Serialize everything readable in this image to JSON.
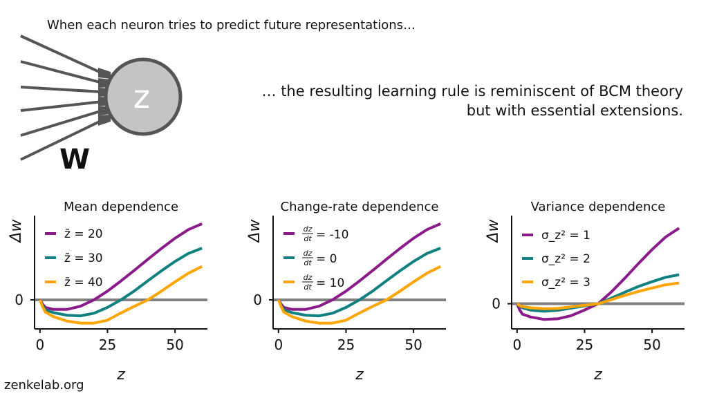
{
  "header": {
    "top_caption": "When each neuron tries to predict future representations…",
    "right_caption_line1": "… the resulting learning rule is reminiscent of BCM theory",
    "right_caption_line2": "but with essential extensions."
  },
  "neuron": {
    "label": "z",
    "weight_label": "W"
  },
  "footer": {
    "text": "zenkelab.org"
  },
  "colors": {
    "purple": "#8B1A8B",
    "teal": "#118080",
    "orange": "#FFA500",
    "zero_line": "#808080"
  },
  "chart_data": [
    {
      "type": "line",
      "title": "Mean dependence",
      "xlabel": "z",
      "ylabel": "Δw",
      "xlim": [
        -2,
        62
      ],
      "xticks": [
        0,
        25,
        50
      ],
      "yticks": [
        0
      ],
      "ylim": [
        -1.0,
        2.9
      ],
      "series": [
        {
          "name": "z̄ = 20",
          "color": "#8B1A8B",
          "x": [
            0,
            1,
            2,
            5,
            10,
            15,
            20,
            25,
            30,
            35,
            40,
            45,
            50,
            55,
            60
          ],
          "y": [
            0,
            -0.15,
            -0.26,
            -0.33,
            -0.33,
            -0.22,
            0.0,
            0.3,
            0.65,
            1.02,
            1.4,
            1.77,
            2.12,
            2.42,
            2.62
          ]
        },
        {
          "name": "z̄ = 30",
          "color": "#118080",
          "x": [
            0,
            1,
            2,
            5,
            10,
            15,
            20,
            25,
            30,
            35,
            40,
            45,
            50,
            55,
            60
          ],
          "y": [
            0,
            -0.2,
            -0.34,
            -0.44,
            -0.53,
            -0.55,
            -0.46,
            -0.26,
            0.0,
            0.31,
            0.66,
            1.0,
            1.32,
            1.6,
            1.78
          ]
        },
        {
          "name": "z̄ = 40",
          "color": "#FFA500",
          "x": [
            0,
            1,
            2,
            5,
            10,
            15,
            20,
            25,
            30,
            35,
            40,
            45,
            50,
            55,
            60
          ],
          "y": [
            0,
            -0.24,
            -0.42,
            -0.58,
            -0.73,
            -0.8,
            -0.8,
            -0.7,
            -0.45,
            -0.22,
            0.0,
            0.3,
            0.62,
            0.92,
            1.15
          ]
        }
      ]
    },
    {
      "type": "line",
      "title": "Change-rate dependence",
      "xlabel": "z",
      "ylabel": "Δw",
      "xlim": [
        -2,
        62
      ],
      "xticks": [
        0,
        25,
        50
      ],
      "yticks": [
        0
      ],
      "ylim": [
        -1.0,
        2.9
      ],
      "series": [
        {
          "name_frac": "dz/dt",
          "name_value": "= -10",
          "color": "#8B1A8B",
          "x": [
            0,
            1,
            2,
            5,
            10,
            15,
            20,
            25,
            30,
            35,
            40,
            45,
            50,
            55,
            60
          ],
          "y": [
            0,
            -0.15,
            -0.26,
            -0.33,
            -0.33,
            -0.22,
            0.0,
            0.3,
            0.65,
            1.02,
            1.4,
            1.77,
            2.12,
            2.42,
            2.62
          ]
        },
        {
          "name_frac": "dz/dt",
          "name_value": "= 0",
          "color": "#118080",
          "x": [
            0,
            1,
            2,
            5,
            10,
            15,
            20,
            25,
            30,
            35,
            40,
            45,
            50,
            55,
            60
          ],
          "y": [
            0,
            -0.2,
            -0.34,
            -0.44,
            -0.53,
            -0.55,
            -0.46,
            -0.26,
            0.0,
            0.31,
            0.66,
            1.0,
            1.32,
            1.6,
            1.78
          ]
        },
        {
          "name_frac": "dz/dt",
          "name_value": "= 10",
          "color": "#FFA500",
          "x": [
            0,
            1,
            2,
            5,
            10,
            15,
            20,
            25,
            30,
            35,
            40,
            45,
            50,
            55,
            60
          ],
          "y": [
            0,
            -0.24,
            -0.42,
            -0.58,
            -0.73,
            -0.8,
            -0.8,
            -0.7,
            -0.45,
            -0.22,
            0.0,
            0.3,
            0.62,
            0.92,
            1.15
          ]
        }
      ]
    },
    {
      "type": "line",
      "title": "Variance dependence",
      "xlabel": "z",
      "ylabel": "Δw",
      "xlim": [
        -2,
        62
      ],
      "xticks": [
        0,
        25,
        50
      ],
      "yticks": [
        0
      ],
      "ylim": [
        -0.8,
        2.8
      ],
      "series": [
        {
          "name": "σ_z² = 1",
          "color": "#8B1A8B",
          "x": [
            0,
            1,
            2,
            5,
            10,
            15,
            20,
            25,
            30,
            35,
            40,
            45,
            50,
            55,
            60
          ],
          "y": [
            0,
            -0.2,
            -0.33,
            -0.42,
            -0.5,
            -0.48,
            -0.38,
            -0.2,
            0.0,
            0.38,
            0.82,
            1.28,
            1.72,
            2.12,
            2.4
          ]
        },
        {
          "name": "σ_z² = 2",
          "color": "#118080",
          "x": [
            0,
            1,
            2,
            5,
            10,
            15,
            20,
            25,
            30,
            35,
            40,
            45,
            50,
            55,
            60
          ],
          "y": [
            0,
            -0.08,
            -0.13,
            -0.2,
            -0.24,
            -0.21,
            -0.14,
            -0.07,
            0.0,
            0.18,
            0.37,
            0.55,
            0.7,
            0.84,
            0.92
          ]
        },
        {
          "name": "σ_z² = 3",
          "color": "#FFA500",
          "x": [
            0,
            1,
            2,
            5,
            10,
            15,
            20,
            25,
            30,
            35,
            40,
            45,
            50,
            55,
            60
          ],
          "y": [
            0,
            -0.06,
            -0.09,
            -0.13,
            -0.16,
            -0.15,
            -0.1,
            -0.05,
            0.0,
            0.13,
            0.27,
            0.39,
            0.5,
            0.6,
            0.66
          ]
        }
      ]
    }
  ]
}
